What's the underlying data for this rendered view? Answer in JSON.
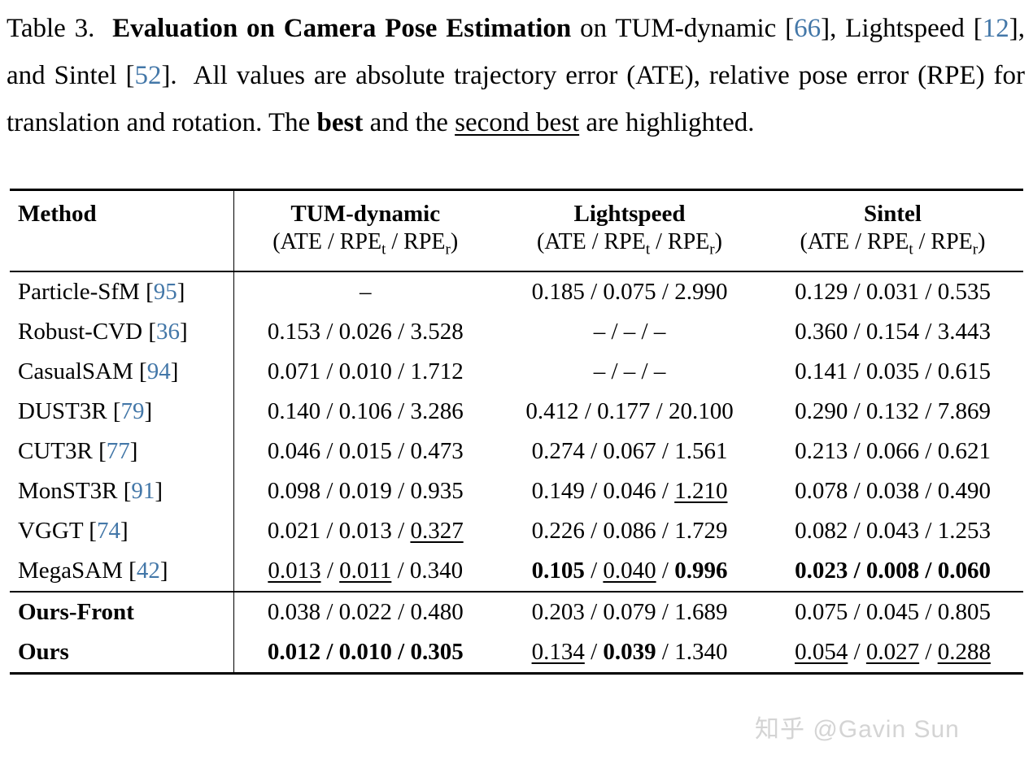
{
  "caption": {
    "segments": [
      {
        "text": "Table 3.  ",
        "style": "plain"
      },
      {
        "text": "Evaluation on Camera Pose Estimation",
        "style": "bold"
      },
      {
        "text": " on TUM-dynamic [",
        "style": "plain"
      },
      {
        "text": "66",
        "style": "cite"
      },
      {
        "text": "], Lightspeed [",
        "style": "plain"
      },
      {
        "text": "12",
        "style": "cite"
      },
      {
        "text": "], and Sintel [",
        "style": "plain"
      },
      {
        "text": "52",
        "style": "cite"
      },
      {
        "text": "].  All values are absolute trajectory error (ATE), relative pose error (RPE) for translation and rotation. The ",
        "style": "plain"
      },
      {
        "text": "best",
        "style": "bold"
      },
      {
        "text": " and the ",
        "style": "plain"
      },
      {
        "text": "second best",
        "style": "underline"
      },
      {
        "text": " are highlighted.",
        "style": "plain"
      }
    ]
  },
  "table": {
    "separator": " / ",
    "cite_open": " [",
    "cite_close": "]",
    "columns": {
      "method": "Method",
      "col1": "TUM-dynamic",
      "col2": "Lightspeed",
      "col3": "Sintel"
    },
    "subheader": {
      "pre": "(ATE / RPE",
      "sub_t": "t",
      "mid": " / RPE",
      "sub_r": "r",
      "post": ")"
    },
    "groups": [
      {
        "rows": [
          {
            "method": "Particle-SfM",
            "cite": "95",
            "methodBold": false,
            "cells": [
              [
                {
                  "t": "–",
                  "s": "p"
                }
              ],
              [
                {
                  "t": "0.185",
                  "s": "p"
                },
                {
                  "t": "0.075",
                  "s": "p"
                },
                {
                  "t": "2.990",
                  "s": "p"
                }
              ],
              [
                {
                  "t": "0.129",
                  "s": "p"
                },
                {
                  "t": "0.031",
                  "s": "p"
                },
                {
                  "t": "0.535",
                  "s": "p"
                }
              ]
            ]
          },
          {
            "method": "Robust-CVD",
            "cite": "36",
            "methodBold": false,
            "cells": [
              [
                {
                  "t": "0.153",
                  "s": "p"
                },
                {
                  "t": "0.026",
                  "s": "p"
                },
                {
                  "t": "3.528",
                  "s": "p"
                }
              ],
              [
                {
                  "t": "–",
                  "s": "p"
                },
                {
                  "t": "–",
                  "s": "p"
                },
                {
                  "t": "–",
                  "s": "p"
                }
              ],
              [
                {
                  "t": "0.360",
                  "s": "p"
                },
                {
                  "t": "0.154",
                  "s": "p"
                },
                {
                  "t": "3.443",
                  "s": "p"
                }
              ]
            ]
          },
          {
            "method": "CasualSAM",
            "cite": "94",
            "methodBold": false,
            "cells": [
              [
                {
                  "t": "0.071",
                  "s": "p"
                },
                {
                  "t": "0.010",
                  "s": "p"
                },
                {
                  "t": "1.712",
                  "s": "p"
                }
              ],
              [
                {
                  "t": "–",
                  "s": "p"
                },
                {
                  "t": "–",
                  "s": "p"
                },
                {
                  "t": "–",
                  "s": "p"
                }
              ],
              [
                {
                  "t": "0.141",
                  "s": "p"
                },
                {
                  "t": "0.035",
                  "s": "p"
                },
                {
                  "t": "0.615",
                  "s": "p"
                }
              ]
            ]
          },
          {
            "method": "DUST3R",
            "cite": "79",
            "methodBold": false,
            "cells": [
              [
                {
                  "t": "0.140",
                  "s": "p"
                },
                {
                  "t": "0.106",
                  "s": "p"
                },
                {
                  "t": "3.286",
                  "s": "p"
                }
              ],
              [
                {
                  "t": "0.412",
                  "s": "p"
                },
                {
                  "t": "0.177",
                  "s": "p"
                },
                {
                  "t": "20.100",
                  "s": "p"
                }
              ],
              [
                {
                  "t": "0.290",
                  "s": "p"
                },
                {
                  "t": "0.132",
                  "s": "p"
                },
                {
                  "t": "7.869",
                  "s": "p"
                }
              ]
            ]
          },
          {
            "method": "CUT3R",
            "cite": "77",
            "methodBold": false,
            "cells": [
              [
                {
                  "t": "0.046",
                  "s": "p"
                },
                {
                  "t": "0.015",
                  "s": "p"
                },
                {
                  "t": "0.473",
                  "s": "p"
                }
              ],
              [
                {
                  "t": "0.274",
                  "s": "p"
                },
                {
                  "t": "0.067",
                  "s": "p"
                },
                {
                  "t": "1.561",
                  "s": "p"
                }
              ],
              [
                {
                  "t": "0.213",
                  "s": "p"
                },
                {
                  "t": "0.066",
                  "s": "p"
                },
                {
                  "t": "0.621",
                  "s": "p"
                }
              ]
            ]
          },
          {
            "method": "MonST3R",
            "cite": "91",
            "methodBold": false,
            "cells": [
              [
                {
                  "t": "0.098",
                  "s": "p"
                },
                {
                  "t": "0.019",
                  "s": "p"
                },
                {
                  "t": "0.935",
                  "s": "p"
                }
              ],
              [
                {
                  "t": "0.149",
                  "s": "p"
                },
                {
                  "t": "0.046",
                  "s": "p"
                },
                {
                  "t": "1.210",
                  "s": "u"
                }
              ],
              [
                {
                  "t": "0.078",
                  "s": "p"
                },
                {
                  "t": "0.038",
                  "s": "p"
                },
                {
                  "t": "0.490",
                  "s": "p"
                }
              ]
            ]
          },
          {
            "method": "VGGT",
            "cite": "74",
            "methodBold": false,
            "cells": [
              [
                {
                  "t": "0.021",
                  "s": "p"
                },
                {
                  "t": "0.013",
                  "s": "p"
                },
                {
                  "t": "0.327",
                  "s": "u"
                }
              ],
              [
                {
                  "t": "0.226",
                  "s": "p"
                },
                {
                  "t": "0.086",
                  "s": "p"
                },
                {
                  "t": "1.729",
                  "s": "p"
                }
              ],
              [
                {
                  "t": "0.082",
                  "s": "p"
                },
                {
                  "t": "0.043",
                  "s": "p"
                },
                {
                  "t": "1.253",
                  "s": "p"
                }
              ]
            ]
          },
          {
            "method": "MegaSAM",
            "cite": "42",
            "methodBold": false,
            "cells": [
              [
                {
                  "t": "0.013",
                  "s": "u"
                },
                {
                  "t": "0.011",
                  "s": "u"
                },
                {
                  "t": "0.340",
                  "s": "p"
                }
              ],
              [
                {
                  "t": "0.105",
                  "s": "b"
                },
                {
                  "t": "0.040",
                  "s": "u"
                },
                {
                  "t": "0.996",
                  "s": "b"
                }
              ],
              [
                {
                  "t": "0.023",
                  "s": "b"
                },
                {
                  "t": "0.008",
                  "s": "b"
                },
                {
                  "t": "0.060",
                  "s": "b"
                }
              ]
            ]
          }
        ]
      },
      {
        "rows": [
          {
            "method": "Ours-Front",
            "cite": "",
            "methodBold": true,
            "cells": [
              [
                {
                  "t": "0.038",
                  "s": "p"
                },
                {
                  "t": "0.022",
                  "s": "p"
                },
                {
                  "t": "0.480",
                  "s": "p"
                }
              ],
              [
                {
                  "t": "0.203",
                  "s": "p"
                },
                {
                  "t": "0.079",
                  "s": "p"
                },
                {
                  "t": "1.689",
                  "s": "p"
                }
              ],
              [
                {
                  "t": "0.075",
                  "s": "p"
                },
                {
                  "t": "0.045",
                  "s": "p"
                },
                {
                  "t": "0.805",
                  "s": "p"
                }
              ]
            ]
          },
          {
            "method": "Ours",
            "cite": "",
            "methodBold": true,
            "cells": [
              [
                {
                  "t": "0.012",
                  "s": "b"
                },
                {
                  "t": "0.010",
                  "s": "b"
                },
                {
                  "t": "0.305",
                  "s": "b"
                }
              ],
              [
                {
                  "t": "0.134",
                  "s": "u"
                },
                {
                  "t": "0.039",
                  "s": "b"
                },
                {
                  "t": "1.340",
                  "s": "p"
                }
              ],
              [
                {
                  "t": "0.054",
                  "s": "u"
                },
                {
                  "t": "0.027",
                  "s": "u"
                },
                {
                  "t": "0.288",
                  "s": "u"
                }
              ]
            ]
          }
        ]
      }
    ]
  },
  "watermark": "知乎 @Gavin Sun",
  "colors": {
    "citation": "#4377a8"
  }
}
